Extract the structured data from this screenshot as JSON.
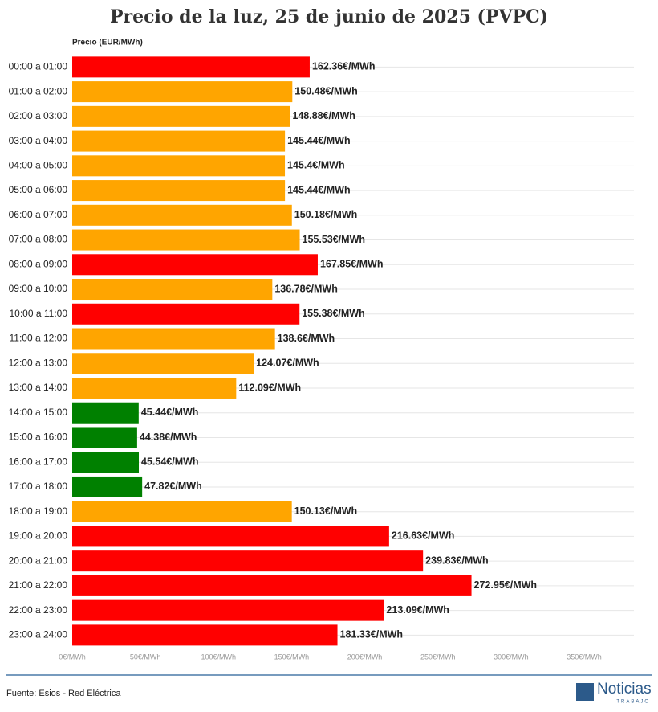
{
  "chart_data": {
    "type": "hbar",
    "title": "Precio de la luz, 25 de junio de 2025 (PVPC)",
    "x_label": "Precio (EUR/MWh)",
    "categories": [
      "00:00 a 01:00",
      "01:00 a 02:00",
      "02:00 a 03:00",
      "03:00 a 04:00",
      "04:00 a 05:00",
      "05:00 a 06:00",
      "06:00 a 07:00",
      "07:00 a 08:00",
      "08:00 a 09:00",
      "09:00 a 10:00",
      "10:00 a 11:00",
      "11:00 a 12:00",
      "12:00 a 13:00",
      "13:00 a 14:00",
      "14:00 a 15:00",
      "15:00 a 16:00",
      "16:00 a 17:00",
      "17:00 a 18:00",
      "18:00 a 19:00",
      "19:00 a 20:00",
      "20:00 a 21:00",
      "21:00 a 22:00",
      "22:00 a 23:00",
      "23:00 a 24:00"
    ],
    "values": [
      162.36,
      150.48,
      148.88,
      145.44,
      145.4,
      145.44,
      150.18,
      155.53,
      167.85,
      136.78,
      155.38,
      138.6,
      124.07,
      112.09,
      45.44,
      44.38,
      45.54,
      47.82,
      150.13,
      216.63,
      239.83,
      272.95,
      213.09,
      181.33
    ],
    "value_labels": [
      "162.36€/MWh",
      "150.48€/MWh",
      "148.88€/MWh",
      "145.44€/MWh",
      "145.4€/MWh",
      "145.44€/MWh",
      "150.18€/MWh",
      "155.53€/MWh",
      "167.85€/MWh",
      "136.78€/MWh",
      "155.38€/MWh",
      "138.6€/MWh",
      "124.07€/MWh",
      "112.09€/MWh",
      "45.44€/MWh",
      "44.38€/MWh",
      "45.54€/MWh",
      "47.82€/MWh",
      "150.13€/MWh",
      "216.63€/MWh",
      "239.83€/MWh",
      "272.95€/MWh",
      "213.09€/MWh",
      "181.33€/MWh"
    ],
    "colors": [
      "#ff0000",
      "#ffa500",
      "#ffa500",
      "#ffa500",
      "#ffa500",
      "#ffa500",
      "#ffa500",
      "#ffa500",
      "#ff0000",
      "#ffa500",
      "#ff0000",
      "#ffa500",
      "#ffa500",
      "#ffa500",
      "#008000",
      "#008000",
      "#008000",
      "#008000",
      "#ffa500",
      "#ff0000",
      "#ff0000",
      "#ff0000",
      "#ff0000",
      "#ff0000"
    ],
    "xlim": [
      0,
      350
    ],
    "xticks": [
      {
        "value": 0,
        "label": "0€/MWh"
      },
      {
        "value": 50,
        "label": "50€/MWh"
      },
      {
        "value": 100,
        "label": "100€/MWh"
      },
      {
        "value": 150,
        "label": "150€/MWh"
      },
      {
        "value": 200,
        "label": "200€/MWh"
      },
      {
        "value": 250,
        "label": "250€/MWh"
      },
      {
        "value": 300,
        "label": "300€/MWh"
      },
      {
        "value": 350,
        "label": "350€/MWh"
      }
    ],
    "source": "Fuente: Esios - Red Eléctrica"
  },
  "logo": {
    "text": "Noticias",
    "subtext": "TRABAJO"
  }
}
